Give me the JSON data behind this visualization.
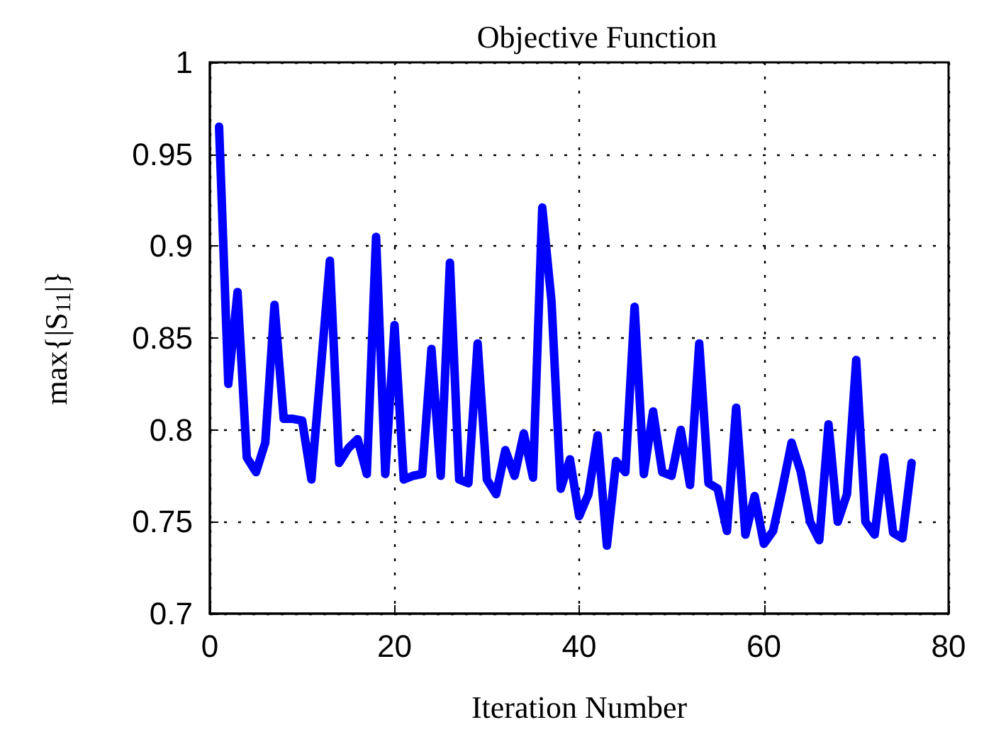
{
  "chart_data": {
    "type": "line",
    "title": "Objective Function",
    "xlabel": "Iteration Number",
    "ylabel": "max{|S$_{11}$|}",
    "x": [
      1,
      2,
      3,
      4,
      5,
      6,
      7,
      8,
      9,
      10,
      11,
      12,
      13,
      14,
      15,
      16,
      17,
      18,
      19,
      20,
      21,
      22,
      23,
      24,
      25,
      26,
      27,
      28,
      29,
      30,
      31,
      32,
      33,
      34,
      35,
      36,
      37,
      38,
      39,
      40,
      41,
      42,
      43,
      44,
      45,
      46,
      47,
      48,
      49,
      50,
      51,
      52,
      53,
      54,
      55,
      56,
      57,
      58,
      59,
      60,
      61,
      62,
      63,
      64,
      65,
      66,
      67,
      68,
      69,
      70,
      71,
      72,
      73,
      74,
      75,
      76
    ],
    "series": [
      {
        "color": "#0000ff",
        "values": [
          0.965,
          0.825,
          0.875,
          0.785,
          0.777,
          0.793,
          0.868,
          0.806,
          0.806,
          0.805,
          0.773,
          0.832,
          0.892,
          0.782,
          0.79,
          0.795,
          0.776,
          0.905,
          0.776,
          0.857,
          0.773,
          0.775,
          0.776,
          0.844,
          0.775,
          0.891,
          0.773,
          0.771,
          0.847,
          0.773,
          0.765,
          0.789,
          0.775,
          0.798,
          0.774,
          0.921,
          0.87,
          0.768,
          0.784,
          0.753,
          0.765,
          0.797,
          0.737,
          0.783,
          0.777,
          0.867,
          0.776,
          0.81,
          0.777,
          0.775,
          0.8,
          0.77,
          0.847,
          0.771,
          0.768,
          0.745,
          0.812,
          0.743,
          0.764,
          0.738,
          0.745,
          0.768,
          0.793,
          0.777,
          0.75,
          0.74,
          0.803,
          0.75,
          0.765,
          0.838,
          0.75,
          0.743,
          0.785,
          0.744,
          0.741,
          0.782
        ]
      }
    ],
    "xlim": [
      0,
      80
    ],
    "xticks": [
      0,
      20,
      40,
      60,
      80
    ],
    "ylim": [
      0.7,
      1
    ],
    "yticks": [
      0.7,
      0.75,
      0.8,
      0.85,
      0.9,
      0.95,
      1
    ],
    "grid": true,
    "marker": "none",
    "line_style": "solid"
  }
}
